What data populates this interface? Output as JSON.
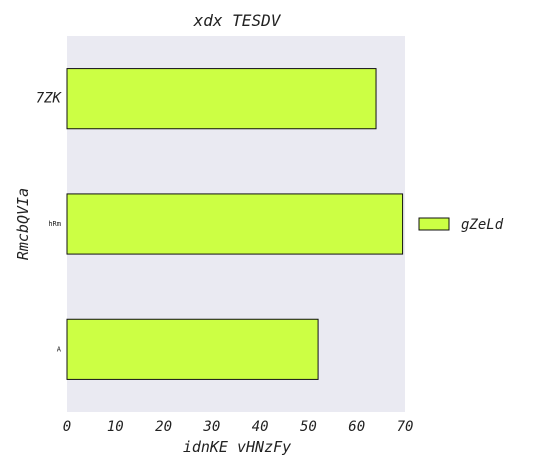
{
  "chart_data": {
    "type": "bar",
    "orientation": "horizontal",
    "title": "xdx TESDV",
    "xlabel": "idnKE vHNzFy",
    "ylabel": "RmcbQVIa",
    "categories": [
      "7ZK",
      "hRm",
      "A"
    ],
    "series": [
      {
        "name": "gZeLd",
        "values": [
          64,
          69.5,
          52
        ]
      }
    ],
    "xlim": [
      0,
      70
    ],
    "xticks": [
      "0",
      "10",
      "20",
      "30",
      "40",
      "50",
      "60",
      "70"
    ],
    "grid": false,
    "legend_position": "right",
    "colors": {
      "bar": "#ccff44",
      "plot_background": "#eaeaf2",
      "bar_edge": "#111111"
    }
  }
}
